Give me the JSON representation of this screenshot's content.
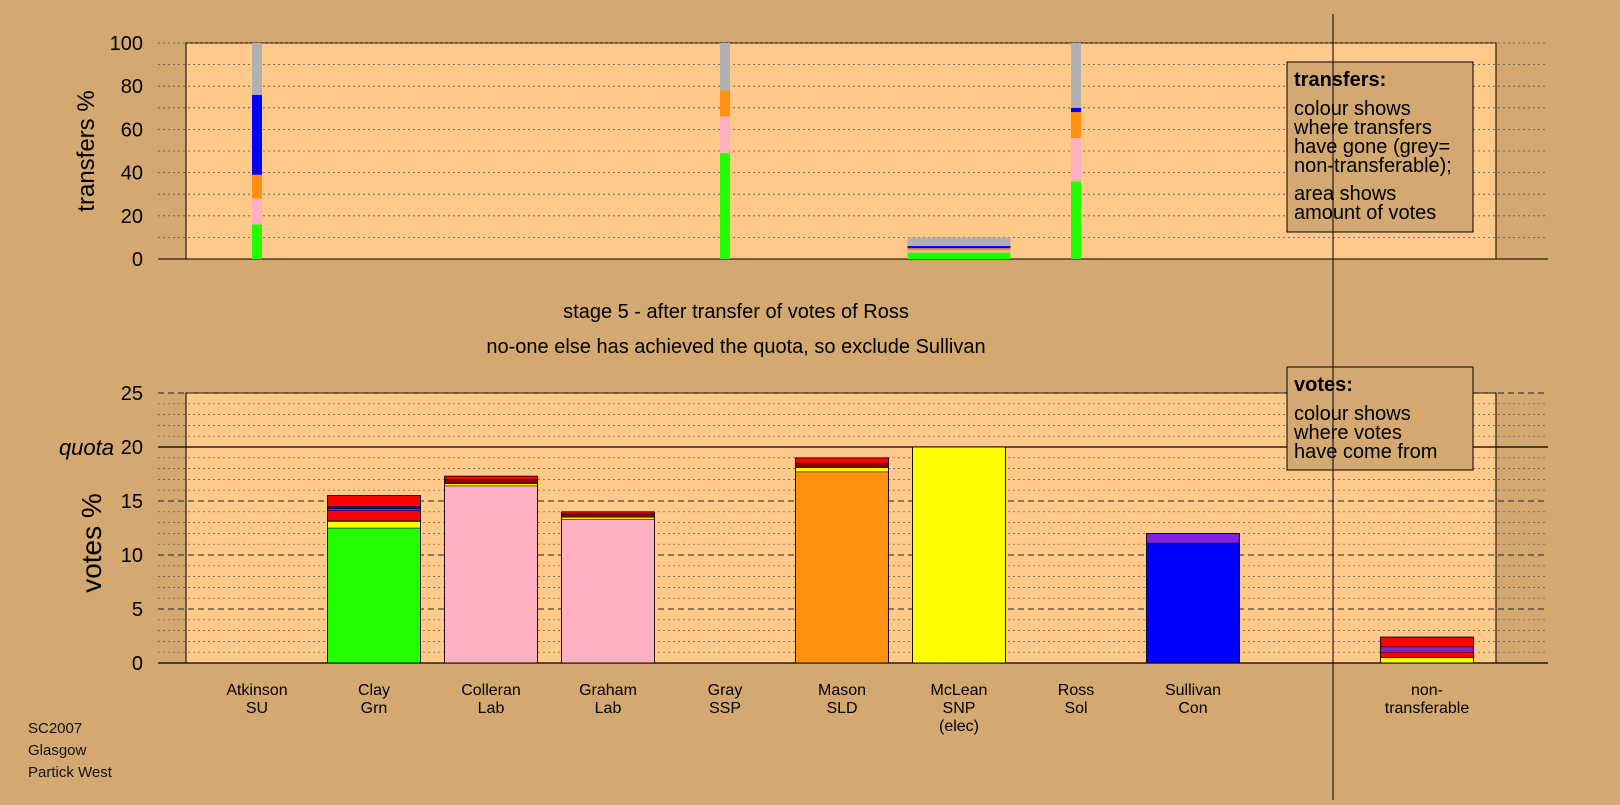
{
  "chart_data": [
    {
      "type": "bar",
      "panel": "transfers",
      "ylabel": "transfers %",
      "ylim": [
        0,
        100
      ],
      "yticks": [
        0,
        20,
        40,
        60,
        80,
        100
      ],
      "grid": true,
      "legend_box": {
        "position": "top-right",
        "title": "transfers:",
        "lines1": [
          "colour shows",
          "where transfers",
          "have gone (grey=",
          "non-transferable);"
        ],
        "lines2": [
          "area shows",
          "amount of votes"
        ]
      },
      "categories": [
        "Atkinson SU",
        "Gray SSP",
        "Ross Sol",
        "McLean SNP surplus"
      ],
      "bars": [
        {
          "category": "Atkinson SU",
          "width_votes_pct": 0.3,
          "segments": [
            {
              "party": "Grn",
              "color": "#22ff00",
              "value": 16
            },
            {
              "party": "Lab",
              "color": "#ffb0c0",
              "value": 12
            },
            {
              "party": "SLD",
              "color": "#ff9010",
              "value": 11
            },
            {
              "party": "Con",
              "color": "#0000ff",
              "value": 37
            },
            {
              "party": "non-transferable",
              "color": "#b0b0b0",
              "value": 24
            }
          ]
        },
        {
          "category": "Gray SSP",
          "width_votes_pct": 0.3,
          "segments": [
            {
              "party": "Grn",
              "color": "#22ff00",
              "value": 49
            },
            {
              "party": "Lab",
              "color": "#ffb0c0",
              "value": 17
            },
            {
              "party": "SLD",
              "color": "#ff9010",
              "value": 12
            },
            {
              "party": "non-transferable",
              "color": "#b0b0b0",
              "value": 22
            }
          ]
        },
        {
          "category": "McLean SNP surplus",
          "width_votes_pct": 3.3,
          "segments": [
            {
              "party": "Grn",
              "color": "#22ff00",
              "value": 3
            },
            {
              "party": "Lab",
              "color": "#ffb0c0",
              "value": 1
            },
            {
              "party": "SLD",
              "color": "#ff9010",
              "value": 1
            },
            {
              "party": "Con",
              "color": "#0000ff",
              "value": 1
            },
            {
              "party": "non-transferable",
              "color": "#b0b0b0",
              "value": 4
            }
          ]
        },
        {
          "category": "Ross Sol",
          "width_votes_pct": 0.3,
          "segments": [
            {
              "party": "Grn",
              "color": "#22ff00",
              "value": 36
            },
            {
              "party": "Lab",
              "color": "#ffb0c0",
              "value": 20
            },
            {
              "party": "SLD",
              "color": "#ff9010",
              "value": 12
            },
            {
              "party": "Con",
              "color": "#0000ff",
              "value": 2
            },
            {
              "party": "non-transferable",
              "color": "#b0b0b0",
              "value": 30
            }
          ]
        }
      ]
    },
    {
      "type": "bar",
      "panel": "votes",
      "stacked": true,
      "ylabel": "votes %",
      "ylim": [
        0,
        25
      ],
      "yticks": [
        0,
        5,
        10,
        15,
        20,
        25
      ],
      "quota": 20,
      "quota_label": "quota",
      "grid": true,
      "title_lines": [
        "stage 5 - after transfer of votes of Ross",
        "no-one else has achieved the quota, so exclude Sullivan"
      ],
      "legend_box": {
        "position": "top-right",
        "title": "votes:",
        "lines1": [
          "colour shows",
          "where votes",
          "have come from"
        ]
      },
      "candidates": [
        {
          "label": [
            "Atkinson",
            "SU"
          ],
          "segments": []
        },
        {
          "label": [
            "Clay",
            "Grn"
          ],
          "segments": [
            {
              "color": "#22ff00",
              "value": 12.5
            },
            {
              "color": "#ffff00",
              "value": 0.6
            },
            {
              "color": "#ff9010",
              "value": 0.1
            },
            {
              "color": "#ff0000",
              "value": 0.9
            },
            {
              "color": "#8020e0",
              "value": 0.2
            },
            {
              "color": "#0000ff",
              "value": 0.2
            },
            {
              "color": "#ff0000",
              "value": 1.0
            }
          ]
        },
        {
          "label": [
            "Colleran",
            "Lab"
          ],
          "segments": [
            {
              "color": "#ffb0c0",
              "value": 16.4
            },
            {
              "color": "#ffff00",
              "value": 0.2
            },
            {
              "color": "#8b0000",
              "value": 0.4
            },
            {
              "color": "#ff0000",
              "value": 0.3
            }
          ]
        },
        {
          "label": [
            "Graham",
            "Lab"
          ],
          "segments": [
            {
              "color": "#ffb0c0",
              "value": 13.3
            },
            {
              "color": "#ffff00",
              "value": 0.2
            },
            {
              "color": "#8b0000",
              "value": 0.3
            },
            {
              "color": "#ff0000",
              "value": 0.2
            }
          ]
        },
        {
          "label": [
            "Gray",
            "SSP"
          ],
          "segments": []
        },
        {
          "label": [
            "Mason",
            "SLD"
          ],
          "segments": [
            {
              "color": "#ff9010",
              "value": 17.7
            },
            {
              "color": "#ffff00",
              "value": 0.4
            },
            {
              "color": "#8b0000",
              "value": 0.4
            },
            {
              "color": "#ff0000",
              "value": 0.5
            }
          ]
        },
        {
          "label": [
            "McLean",
            "SNP",
            "(elec)"
          ],
          "segments": [
            {
              "color": "#ffff00",
              "value": 20.0
            }
          ]
        },
        {
          "label": [
            "Ross",
            "Sol"
          ],
          "segments": []
        },
        {
          "label": [
            "Sullivan",
            "Con"
          ],
          "segments": [
            {
              "color": "#0000ff",
              "value": 11.1
            },
            {
              "color": "#8020e0",
              "value": 0.9
            }
          ]
        },
        {
          "label": [
            "non-",
            "transferable"
          ],
          "segments": [
            {
              "color": "#ffff00",
              "value": 0.5
            },
            {
              "color": "#ff0000",
              "value": 0.5
            },
            {
              "color": "#8020e0",
              "value": 0.5
            },
            {
              "color": "#ff0000",
              "value": 0.9
            }
          ]
        }
      ]
    }
  ],
  "source_lines": [
    "SC2007",
    "Glasgow",
    "Partick West"
  ]
}
